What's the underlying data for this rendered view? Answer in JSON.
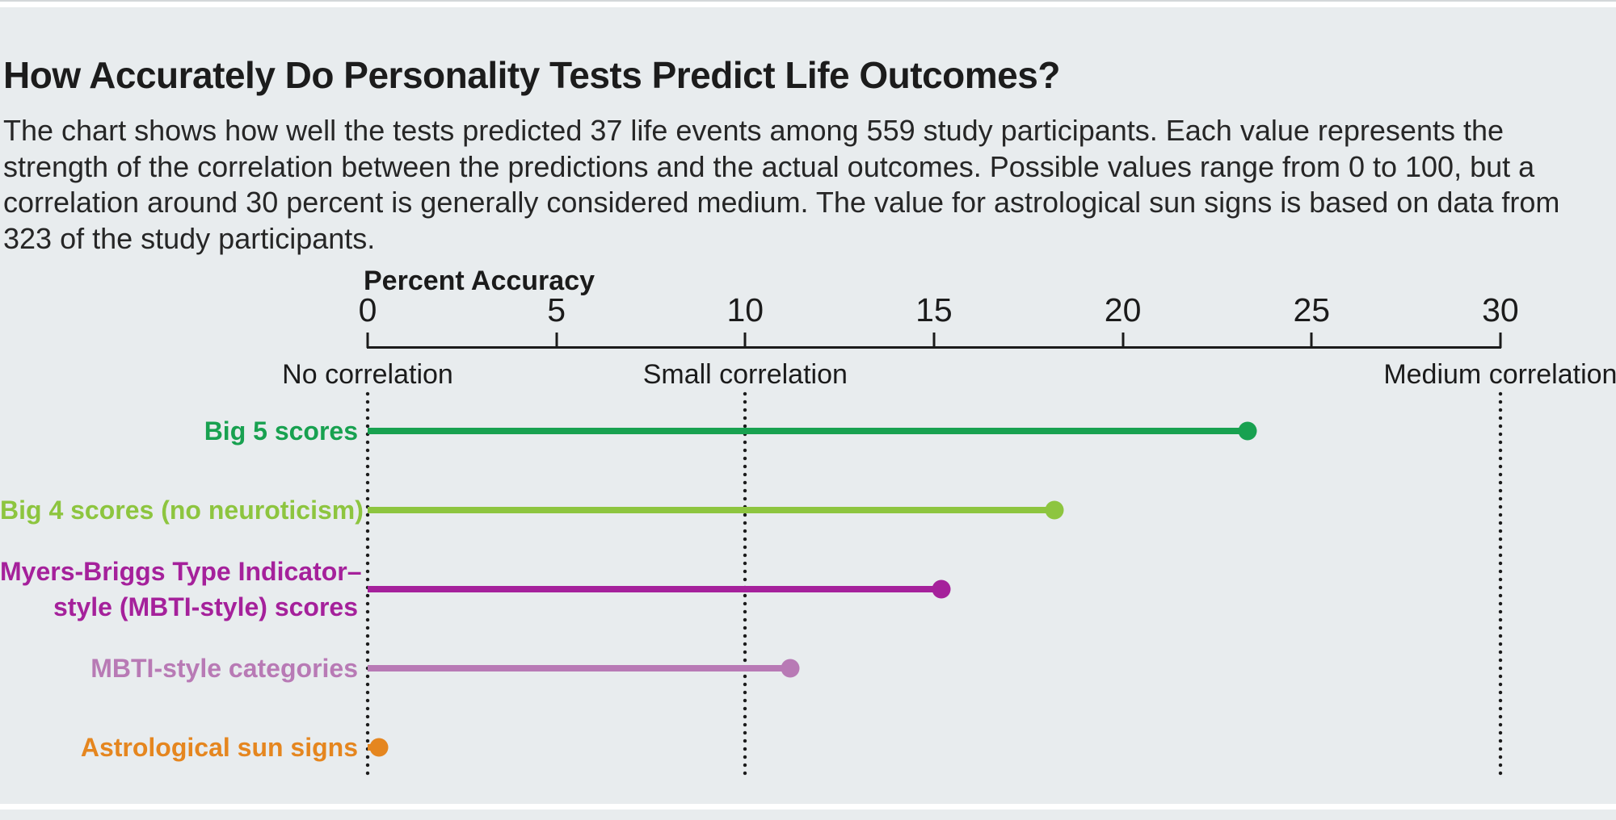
{
  "page": {
    "title": "How Accurately Do Personality Tests Predict Life Outcomes?",
    "subtitle": "The chart shows how well the tests predicted 37 life events among 559 study participants. Each value represents the strength of the correlation between the predictions and the actual outcomes. Possible values range from 0 to 100, but a correlation around 30 percent is generally considered medium. The value for astrological sun signs is based on data from 323 of the study participants."
  },
  "chart_data": {
    "type": "bar",
    "variant": "horizontal-lollipop",
    "title": "How Accurately Do Personality Tests Predict Life Outcomes?",
    "xlabel": "Percent Accuracy",
    "ylabel": "",
    "xlim": [
      0,
      30
    ],
    "tick_values": [
      0,
      5,
      10,
      15,
      20,
      25,
      30
    ],
    "tick_labels": [
      "0",
      "5",
      "10",
      "15",
      "20",
      "25",
      "30"
    ],
    "grid": "dotted vertical guide lines at 0, 10 and 30",
    "legend": "none",
    "annotations": [
      {
        "x": 0,
        "label": "No correlation"
      },
      {
        "x": 10,
        "label": "Small correlation"
      },
      {
        "x": 30,
        "label": "Medium correlation"
      }
    ],
    "categories": [
      "Big 5 scores",
      "Big 4 scores (no neuroticism)",
      "Myers-Briggs Type Indicator–style (MBTI-style) scores",
      "MBTI-style categories",
      "Astrological sun signs"
    ],
    "values": [
      23.3,
      18.2,
      15.2,
      11.2,
      0.3
    ],
    "series": [
      {
        "name": "Big 5 scores",
        "label_lines": [
          "Big 5 scores"
        ],
        "value": 23.3,
        "color": "#18a150"
      },
      {
        "name": "Big 4 scores (no neuroticism)",
        "label_lines": [
          "Big 4 scores (no neuroticism)"
        ],
        "value": 18.2,
        "color": "#8dc53f"
      },
      {
        "name": "Myers-Briggs Type Indicator–style (MBTI-style) scores",
        "label_lines": [
          "Myers-Briggs Type Indicator–",
          "style (MBTI-style) scores"
        ],
        "value": 15.2,
        "color": "#a5219b"
      },
      {
        "name": "MBTI-style categories",
        "label_lines": [
          "MBTI-style categories"
        ],
        "value": 11.2,
        "color": "#b87ab5"
      },
      {
        "name": "Astrological sun signs",
        "label_lines": [
          "Astrological sun signs"
        ],
        "value": 0.3,
        "color": "#e5861f"
      }
    ],
    "colors": {
      "axis": "#1b1b1b",
      "panel_background": "#e8ecee",
      "text": "#1e1e1e"
    }
  }
}
